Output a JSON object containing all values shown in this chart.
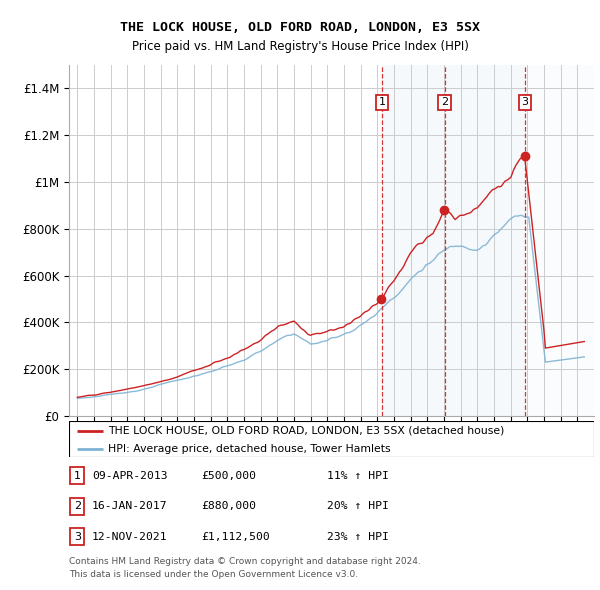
{
  "title": "THE LOCK HOUSE, OLD FORD ROAD, LONDON, E3 5SX",
  "subtitle": "Price paid vs. HM Land Registry's House Price Index (HPI)",
  "legend_line1": "THE LOCK HOUSE, OLD FORD ROAD, LONDON, E3 5SX (detached house)",
  "legend_line2": "HPI: Average price, detached house, Tower Hamlets",
  "footnote1": "Contains HM Land Registry data © Crown copyright and database right 2024.",
  "footnote2": "This data is licensed under the Open Government Licence v3.0.",
  "transactions": [
    {
      "num": 1,
      "date": "09-APR-2013",
      "price": "£500,000",
      "hpi": "11% ↑ HPI",
      "year": 2013.27,
      "price_val": 500000
    },
    {
      "num": 2,
      "date": "16-JAN-2017",
      "price": "£880,000",
      "hpi": "20% ↑ HPI",
      "year": 2017.04,
      "price_val": 880000
    },
    {
      "num": 3,
      "date": "12-NOV-2021",
      "price": "£1,112,500",
      "hpi": "23% ↑ HPI",
      "year": 2021.87,
      "price_val": 1112500
    }
  ],
  "ylim": [
    0,
    1500000
  ],
  "yticks": [
    0,
    200000,
    400000,
    600000,
    800000,
    1000000,
    1200000,
    1400000
  ],
  "ytick_labels": [
    "£0",
    "£200K",
    "£400K",
    "£600K",
    "£800K",
    "£1M",
    "£1.2M",
    "£1.4M"
  ],
  "xmin": 1994.5,
  "xmax": 2026.0,
  "red_color": "#cc2222",
  "blue_color": "#7fb3d3",
  "shade_color": "#dce8f0",
  "grid_color": "#cccccc",
  "background_color": "#ffffff",
  "hpi_knots_x": [
    0,
    2,
    4,
    6,
    8,
    10,
    12,
    13,
    14,
    15,
    16,
    17,
    18,
    19,
    20,
    21,
    22,
    23,
    24,
    25,
    26,
    27,
    28,
    29,
    30
  ],
  "hpi_knots_y": [
    75000,
    90000,
    115000,
    148000,
    185000,
    235000,
    310000,
    340000,
    295000,
    310000,
    340000,
    380000,
    430000,
    510000,
    590000,
    660000,
    710000,
    730000,
    750000,
    810000,
    870000,
    890000,
    300000,
    250000,
    270000
  ],
  "red_knots_x": [
    0,
    2,
    4,
    6,
    8,
    10,
    12,
    13,
    14,
    15,
    16,
    17,
    18,
    19,
    20,
    21,
    22,
    23,
    24,
    25,
    26,
    26.87,
    27.1,
    28,
    29,
    30
  ],
  "red_knots_y": [
    80000,
    98000,
    125000,
    162000,
    205000,
    255000,
    340000,
    370000,
    320000,
    340000,
    375000,
    420000,
    475000,
    560000,
    645000,
    720000,
    770000,
    800000,
    820000,
    880000,
    950000,
    1112500,
    1100000,
    310000,
    280000,
    300000
  ]
}
